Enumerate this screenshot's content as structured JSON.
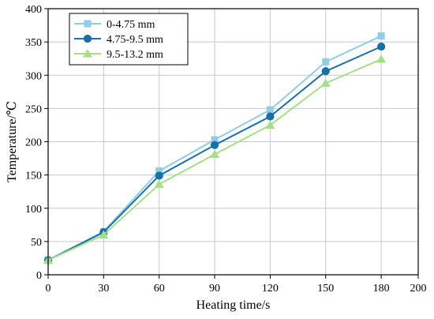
{
  "chart_data": {
    "type": "line",
    "xlabel": "Heating time/s",
    "ylabel": "Temperature/℃",
    "xlim": [
      0,
      200
    ],
    "ylim": [
      0,
      400
    ],
    "x_ticks": [
      0,
      30,
      60,
      90,
      120,
      150,
      180,
      200
    ],
    "y_ticks": [
      0,
      50,
      100,
      150,
      200,
      250,
      300,
      350,
      400
    ],
    "grid": true,
    "legend_position": "top-left",
    "x": [
      0,
      30,
      60,
      90,
      120,
      150,
      180
    ],
    "series": [
      {
        "name": "0-4.75 mm",
        "marker": "square",
        "color": "#92cde6",
        "values": [
          22,
          65,
          156,
          203,
          248,
          320,
          359
        ]
      },
      {
        "name": "4.75-9.5 mm",
        "marker": "circle",
        "color": "#1770aa",
        "values": [
          22,
          64,
          149,
          195,
          238,
          306,
          343
        ]
      },
      {
        "name": "9.5-13.2 mm",
        "marker": "triangle",
        "color": "#a6df87",
        "values": [
          22,
          60,
          136,
          181,
          225,
          288,
          324
        ]
      }
    ]
  }
}
